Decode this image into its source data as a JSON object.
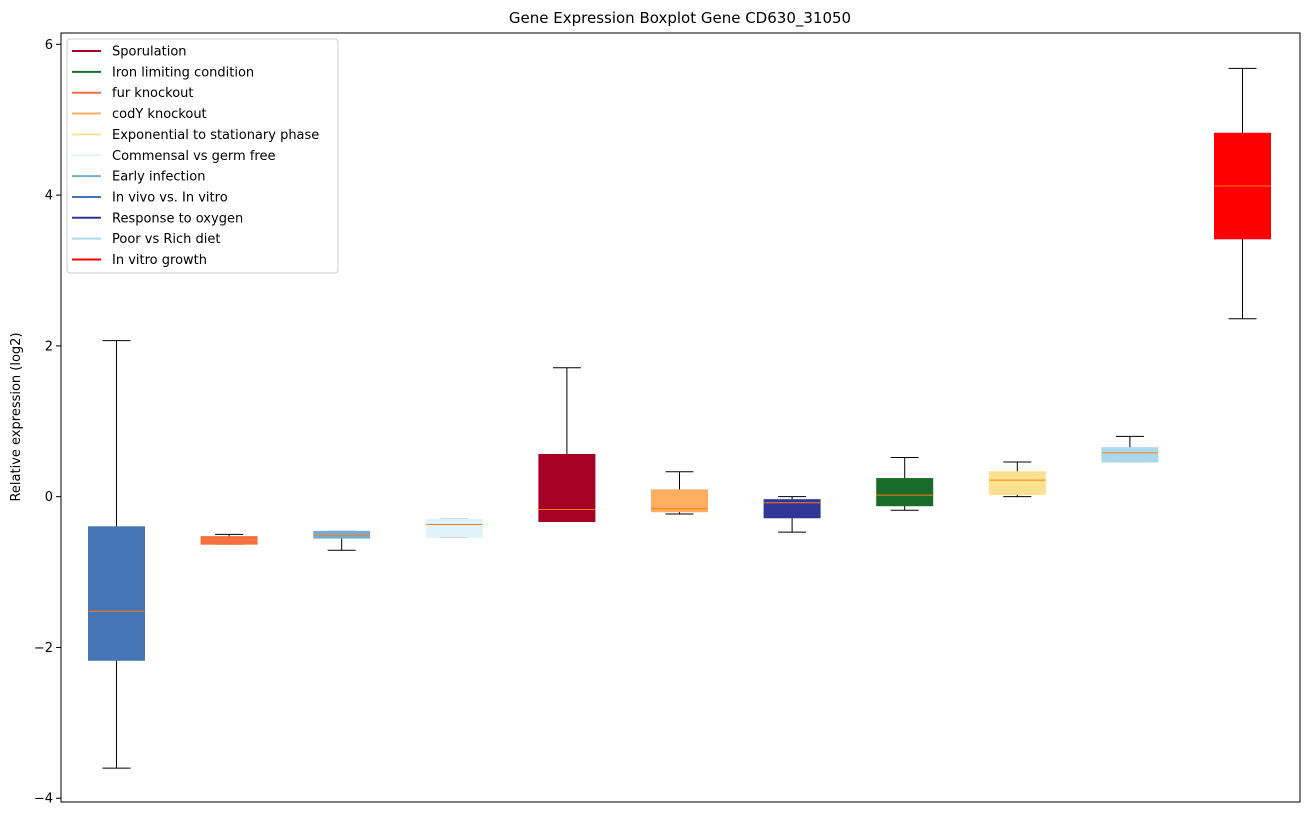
{
  "chart_data": {
    "type": "boxplot",
    "title": "Gene Expression Boxplot Gene CD630_31050",
    "xlabel": "",
    "ylabel": "Relative expression (log2)",
    "ylim": [
      -4.05,
      6.15
    ],
    "yticks": [
      -4,
      -2,
      0,
      2,
      4,
      6
    ],
    "ytick_labels": [
      "−4",
      "−2",
      "0",
      "2",
      "4",
      "6"
    ],
    "grid": false,
    "legend_position": "top-left",
    "legend": [
      {
        "label": "Sporulation",
        "color": "#a50026"
      },
      {
        "label": "Iron limiting condition",
        "color": "#1a6b2a"
      },
      {
        "label": "fur knockout",
        "color": "#f46d43"
      },
      {
        "label": "codY knockout",
        "color": "#fdae61"
      },
      {
        "label": "Exponential to stationary phase",
        "color": "#fee090"
      },
      {
        "label": "Commensal vs germ free",
        "color": "#e0f3f8"
      },
      {
        "label": "Early infection",
        "color": "#74add1"
      },
      {
        "label": "In vivo vs. In vitro",
        "color": "#4575b4"
      },
      {
        "label": "Response to oxygen",
        "color": "#313695"
      },
      {
        "label": "Poor vs Rich diet",
        "color": "#abd9e9"
      },
      {
        "label": "In vitro growth",
        "color": "#ff0000"
      }
    ],
    "boxes": [
      {
        "series": "In vivo vs. In vitro",
        "color": "#4575b4",
        "whisker_low": -3.6,
        "q1": -2.17,
        "median": -1.52,
        "q3": -0.4,
        "whisker_high": 2.07
      },
      {
        "series": "fur knockout",
        "color": "#f46d43",
        "whisker_low": -0.63,
        "q1": -0.63,
        "median": -0.57,
        "q3": -0.53,
        "whisker_high": -0.5
      },
      {
        "series": "Early infection",
        "color": "#74add1",
        "whisker_low": -0.71,
        "q1": -0.55,
        "median": -0.51,
        "q3": -0.46,
        "whisker_high": -0.46
      },
      {
        "series": "Commensal vs germ free",
        "color": "#e0f3f8",
        "whisker_low": -0.54,
        "q1": -0.54,
        "median": -0.37,
        "q3": -0.3,
        "whisker_high": -0.3
      },
      {
        "series": "Sporulation",
        "color": "#a50026",
        "whisker_low": -0.33,
        "q1": -0.33,
        "median": -0.17,
        "q3": 0.56,
        "whisker_high": 1.71
      },
      {
        "series": "codY knockout",
        "color": "#fdae61",
        "whisker_low": -0.23,
        "q1": -0.2,
        "median": -0.16,
        "q3": 0.09,
        "whisker_high": 0.33
      },
      {
        "series": "Response to oxygen",
        "color": "#313695",
        "whisker_low": -0.47,
        "q1": -0.28,
        "median": -0.08,
        "q3": -0.04,
        "whisker_high": 0.0
      },
      {
        "series": "Iron limiting condition",
        "color": "#1a6b2a",
        "whisker_low": -0.18,
        "q1": -0.12,
        "median": 0.02,
        "q3": 0.24,
        "whisker_high": 0.52
      },
      {
        "series": "Exponential to stationary phase",
        "color": "#fee090",
        "whisker_low": 0.0,
        "q1": 0.03,
        "median": 0.22,
        "q3": 0.33,
        "whisker_high": 0.46
      },
      {
        "series": "Poor vs Rich diet",
        "color": "#abd9e9",
        "whisker_low": 0.46,
        "q1": 0.46,
        "median": 0.58,
        "q3": 0.65,
        "whisker_high": 0.8
      },
      {
        "series": "In vitro growth",
        "color": "#ff0000",
        "whisker_low": 2.36,
        "q1": 3.42,
        "median": 4.12,
        "q3": 4.82,
        "whisker_high": 5.68
      }
    ],
    "colors": {
      "median": "#ff7f0e",
      "whisker": "#000000",
      "axes": "#000000"
    }
  }
}
